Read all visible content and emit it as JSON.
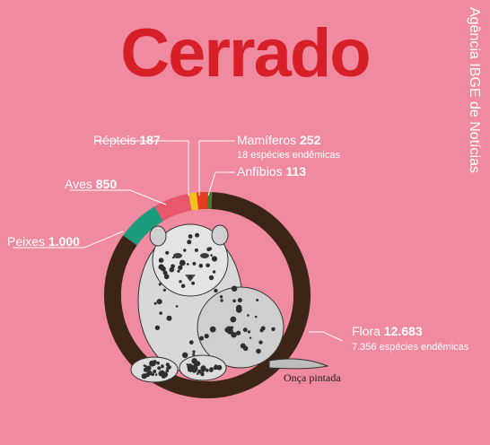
{
  "title": "Cerrado",
  "source": "Agência IBGE de Notícias",
  "caption": "Onça pintada",
  "colors": {
    "background": "#f08aa0",
    "title": "#d61f26",
    "ring_center": "#f08aa0"
  },
  "chart_data": {
    "type": "pie",
    "title": "Cerrado",
    "donut": true,
    "slices": [
      {
        "name": "Flora",
        "value": 12683,
        "value_label": "12.683",
        "note": "7.356 espécies endêmicas",
        "color": "#3c2417"
      },
      {
        "name": "Peixes",
        "value": 1000,
        "value_label": "1.000",
        "note": "",
        "color": "#1a9c7c"
      },
      {
        "name": "Aves",
        "value": 850,
        "value_label": "850",
        "note": "",
        "color": "#e8576c"
      },
      {
        "name": "Répteis",
        "value": 187,
        "value_label": "187",
        "note": "",
        "color": "#f2c21a"
      },
      {
        "name": "Mamíferos",
        "value": 252,
        "value_label": "252",
        "note": "18 espécies endêmicas",
        "color": "#e0401f"
      },
      {
        "name": "Anfíbios",
        "value": 113,
        "value_label": "113",
        "note": "",
        "color": "#3f7f36"
      }
    ]
  }
}
